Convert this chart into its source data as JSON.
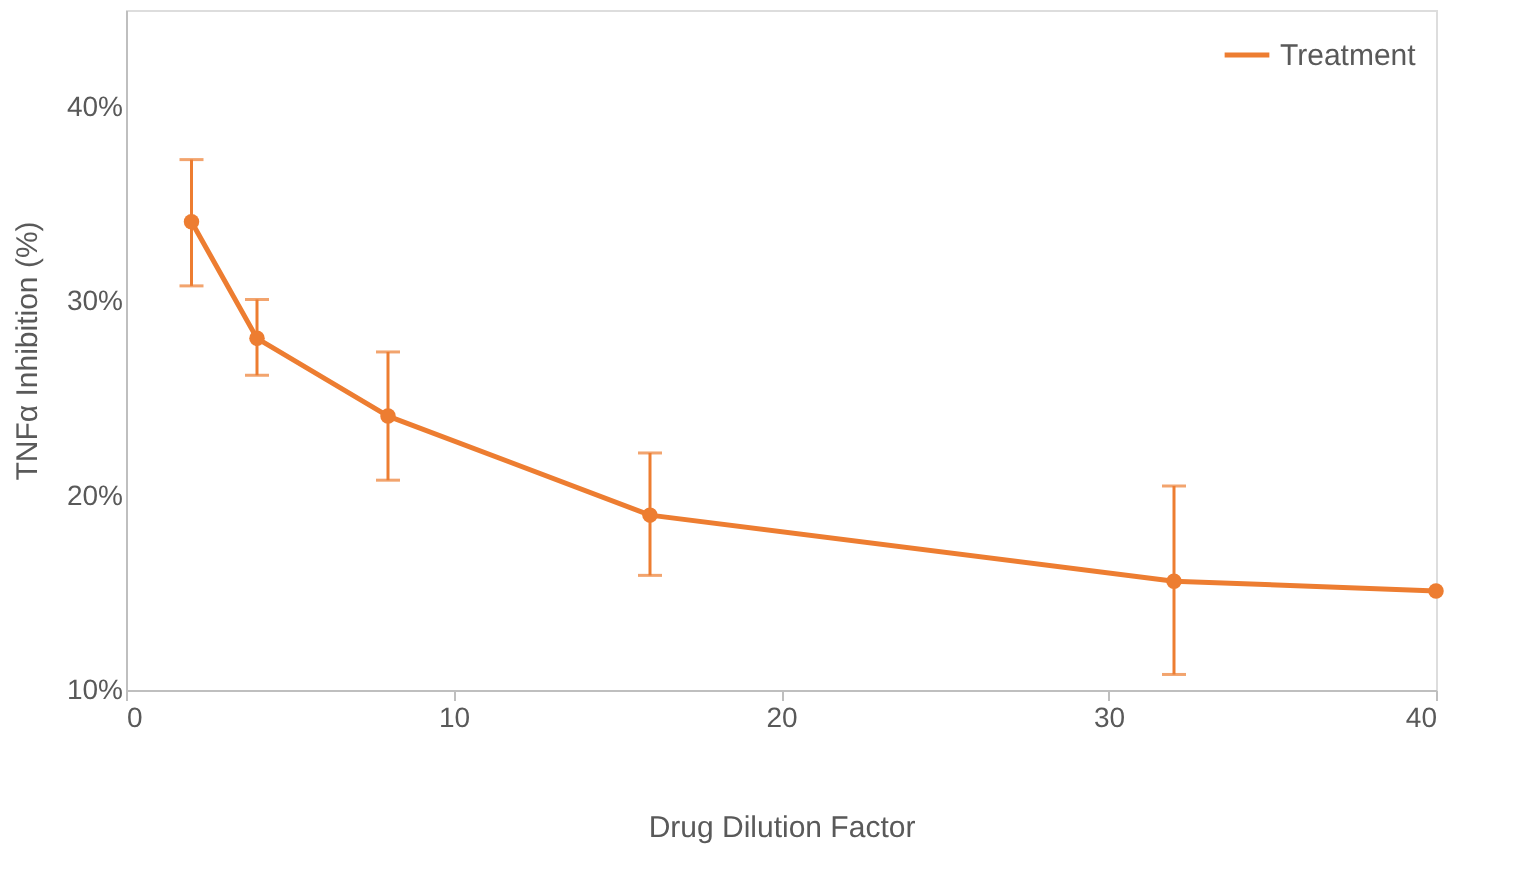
{
  "chart_data": {
    "type": "line",
    "xlabel": "Drug Dilution Factor",
    "ylabel": "TNFα Inhibition (%)",
    "x": [
      2,
      4,
      8,
      16,
      32,
      40
    ],
    "series": [
      {
        "name": "Treatment",
        "color": "#ed7d31",
        "values": [
          34.1,
          28.1,
          24.1,
          19.0,
          15.6,
          15.1
        ],
        "errors": [
          [
            30.8,
            37.3
          ],
          [
            26.2,
            30.1
          ],
          [
            20.8,
            27.4
          ],
          [
            15.9,
            22.2
          ],
          [
            10.8,
            20.5
          ],
          null
        ]
      }
    ],
    "xlim": [
      0,
      40
    ],
    "xticks": [
      0,
      10,
      20,
      30,
      40
    ],
    "ylim": [
      10,
      45
    ],
    "yticks": [
      {
        "value": 10,
        "label": "10%"
      },
      {
        "value": 20,
        "label": "20%"
      },
      {
        "value": 30,
        "label": "30%"
      },
      {
        "value": 40,
        "label": "40%"
      }
    ],
    "grid": false,
    "legend": "top right",
    "marker": "circle",
    "line_style": "solid"
  }
}
